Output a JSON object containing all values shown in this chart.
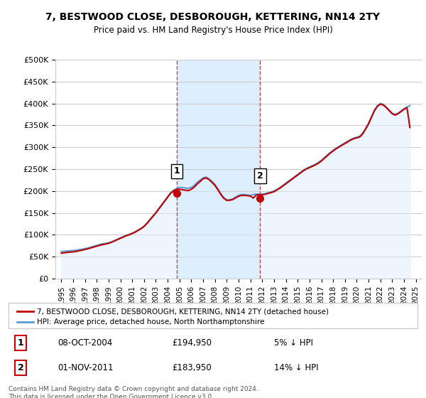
{
  "title": "7, BESTWOOD CLOSE, DESBOROUGH, KETTERING, NN14 2TY",
  "subtitle": "Price paid vs. HM Land Registry's House Price Index (HPI)",
  "xlabel": "",
  "ylabel": "",
  "background_color": "#ffffff",
  "plot_bg_color": "#ffffff",
  "grid_color": "#cccccc",
  "hpi_line_color": "#5b9bd5",
  "price_line_color": "#c00000",
  "hpi_fill_color": "#ddeeff",
  "highlight_bg_color": "#ddeeff",
  "ylim": [
    0,
    500000
  ],
  "yticks": [
    0,
    50000,
    100000,
    150000,
    200000,
    250000,
    300000,
    350000,
    400000,
    450000,
    500000
  ],
  "ytick_labels": [
    "£0",
    "£50K",
    "£100K",
    "£150K",
    "£200K",
    "£250K",
    "£300K",
    "£350K",
    "£400K",
    "£450K",
    "£500K"
  ],
  "xlim_start": 1994.5,
  "xlim_end": 2025.5,
  "xticks": [
    1995,
    1996,
    1997,
    1998,
    1999,
    2000,
    2001,
    2002,
    2003,
    2004,
    2005,
    2006,
    2007,
    2008,
    2009,
    2010,
    2011,
    2012,
    2013,
    2014,
    2015,
    2016,
    2017,
    2018,
    2019,
    2020,
    2021,
    2022,
    2023,
    2024,
    2025
  ],
  "sale1_x": 2004.77,
  "sale1_y": 194950,
  "sale1_label": "1",
  "sale2_x": 2011.83,
  "sale2_y": 183950,
  "sale2_label": "2",
  "vline1_x": 2004.77,
  "vline2_x": 2011.83,
  "legend_entries": [
    "7, BESTWOOD CLOSE, DESBOROUGH, KETTERING, NN14 2TY (detached house)",
    "HPI: Average price, detached house, North Northamptonshire"
  ],
  "table_rows": [
    {
      "num": "1",
      "date": "08-OCT-2004",
      "price": "£194,950",
      "vs_hpi": "5% ↓ HPI"
    },
    {
      "num": "2",
      "date": "01-NOV-2011",
      "price": "£183,950",
      "vs_hpi": "14% ↓ HPI"
    }
  ],
  "footer": "Contains HM Land Registry data © Crown copyright and database right 2024.\nThis data is licensed under the Open Government Licence v3.0.",
  "hpi_data": {
    "years": [
      1995.0,
      1995.25,
      1995.5,
      1995.75,
      1996.0,
      1996.25,
      1996.5,
      1996.75,
      1997.0,
      1997.25,
      1997.5,
      1997.75,
      1998.0,
      1998.25,
      1998.5,
      1998.75,
      1999.0,
      1999.25,
      1999.5,
      1999.75,
      2000.0,
      2000.25,
      2000.5,
      2000.75,
      2001.0,
      2001.25,
      2001.5,
      2001.75,
      2002.0,
      2002.25,
      2002.5,
      2002.75,
      2003.0,
      2003.25,
      2003.5,
      2003.75,
      2004.0,
      2004.25,
      2004.5,
      2004.75,
      2005.0,
      2005.25,
      2005.5,
      2005.75,
      2006.0,
      2006.25,
      2006.5,
      2006.75,
      2007.0,
      2007.25,
      2007.5,
      2007.75,
      2008.0,
      2008.25,
      2008.5,
      2008.75,
      2009.0,
      2009.25,
      2009.5,
      2009.75,
      2010.0,
      2010.25,
      2010.5,
      2010.75,
      2011.0,
      2011.25,
      2011.5,
      2011.75,
      2012.0,
      2012.25,
      2012.5,
      2012.75,
      2013.0,
      2013.25,
      2013.5,
      2013.75,
      2014.0,
      2014.25,
      2014.5,
      2014.75,
      2015.0,
      2015.25,
      2015.5,
      2015.75,
      2016.0,
      2016.25,
      2016.5,
      2016.75,
      2017.0,
      2017.25,
      2017.5,
      2017.75,
      2018.0,
      2018.25,
      2018.5,
      2018.75,
      2019.0,
      2019.25,
      2019.5,
      2019.75,
      2020.0,
      2020.25,
      2020.5,
      2020.75,
      2021.0,
      2021.25,
      2021.5,
      2021.75,
      2022.0,
      2022.25,
      2022.5,
      2022.75,
      2023.0,
      2023.25,
      2023.5,
      2023.75,
      2024.0,
      2024.25,
      2024.5
    ],
    "values": [
      62000,
      62500,
      63000,
      63500,
      64000,
      65000,
      66000,
      67000,
      68500,
      70000,
      72000,
      74000,
      76000,
      78000,
      79500,
      80500,
      82000,
      84000,
      87000,
      90000,
      93000,
      96000,
      99000,
      101000,
      104000,
      107000,
      111000,
      115000,
      120000,
      127000,
      135000,
      143000,
      151000,
      160000,
      169000,
      178000,
      187000,
      196000,
      202000,
      205000,
      208000,
      208000,
      207000,
      206000,
      208000,
      213000,
      220000,
      225000,
      230000,
      232000,
      228000,
      222000,
      215000,
      205000,
      194000,
      185000,
      180000,
      180000,
      182000,
      186000,
      190000,
      192000,
      192000,
      191000,
      190000,
      192000,
      193000,
      193000,
      193000,
      194000,
      196000,
      198000,
      200000,
      204000,
      208000,
      213000,
      218000,
      223000,
      228000,
      233000,
      238000,
      243000,
      248000,
      252000,
      255000,
      258000,
      261000,
      265000,
      270000,
      276000,
      282000,
      288000,
      293000,
      298000,
      302000,
      306000,
      310000,
      314000,
      318000,
      321000,
      323000,
      325000,
      332000,
      343000,
      355000,
      370000,
      385000,
      395000,
      400000,
      398000,
      392000,
      385000,
      378000,
      375000,
      378000,
      383000,
      388000,
      392000,
      395000
    ]
  },
  "price_data": {
    "years": [
      1995.0,
      1995.25,
      1995.5,
      1995.75,
      1996.0,
      1996.25,
      1996.5,
      1996.75,
      1997.0,
      1997.25,
      1997.5,
      1997.75,
      1998.0,
      1998.25,
      1998.5,
      1998.75,
      1999.0,
      1999.25,
      1999.5,
      1999.75,
      2000.0,
      2000.25,
      2000.5,
      2000.75,
      2001.0,
      2001.25,
      2001.5,
      2001.75,
      2002.0,
      2002.25,
      2002.5,
      2002.75,
      2003.0,
      2003.25,
      2003.5,
      2003.75,
      2004.0,
      2004.25,
      2004.5,
      2004.75,
      2005.0,
      2005.25,
      2005.5,
      2005.75,
      2006.0,
      2006.25,
      2006.5,
      2006.75,
      2007.0,
      2007.25,
      2007.5,
      2007.75,
      2008.0,
      2008.25,
      2008.5,
      2008.75,
      2009.0,
      2009.25,
      2009.5,
      2009.75,
      2010.0,
      2010.25,
      2010.5,
      2010.75,
      2011.0,
      2011.25,
      2011.5,
      2011.75,
      2012.0,
      2012.25,
      2012.5,
      2012.75,
      2013.0,
      2013.25,
      2013.5,
      2013.75,
      2014.0,
      2014.25,
      2014.5,
      2014.75,
      2015.0,
      2015.25,
      2015.5,
      2015.75,
      2016.0,
      2016.25,
      2016.5,
      2016.75,
      2017.0,
      2017.25,
      2017.5,
      2017.75,
      2018.0,
      2018.25,
      2018.5,
      2018.75,
      2019.0,
      2019.25,
      2019.5,
      2019.75,
      2020.0,
      2020.25,
      2020.5,
      2020.75,
      2021.0,
      2021.25,
      2021.5,
      2021.75,
      2022.0,
      2022.25,
      2022.5,
      2022.75,
      2023.0,
      2023.25,
      2023.5,
      2023.75,
      2024.0,
      2024.25,
      2024.5
    ],
    "values": [
      58000,
      59000,
      60000,
      60500,
      61000,
      62000,
      63500,
      65000,
      66500,
      68000,
      70000,
      72000,
      74000,
      76000,
      77500,
      79000,
      80500,
      83000,
      86000,
      89000,
      92000,
      95000,
      98000,
      100000,
      103000,
      106000,
      110000,
      114000,
      119000,
      126000,
      134000,
      142000,
      150000,
      159000,
      168000,
      177000,
      186000,
      194950,
      200000,
      204000,
      204000,
      203000,
      202000,
      201000,
      204000,
      209000,
      216000,
      222000,
      228000,
      230000,
      226000,
      220000,
      213000,
      203000,
      192000,
      183500,
      178500,
      179000,
      180500,
      184500,
      188000,
      190000,
      190000,
      189500,
      188500,
      183950,
      191000,
      191500,
      191500,
      192500,
      194500,
      196500,
      198500,
      202500,
      206500,
      211500,
      216500,
      221500,
      226500,
      231500,
      236500,
      241500,
      246500,
      250500,
      253500,
      256500,
      259500,
      263500,
      268500,
      274500,
      280500,
      286500,
      291500,
      296500,
      300500,
      304500,
      308500,
      312500,
      316500,
      319500,
      321500,
      323500,
      330500,
      341500,
      353500,
      368500,
      383500,
      393500,
      398500,
      396500,
      390500,
      383500,
      376500,
      373500,
      376500,
      381500,
      386500,
      390500,
      345000
    ]
  }
}
